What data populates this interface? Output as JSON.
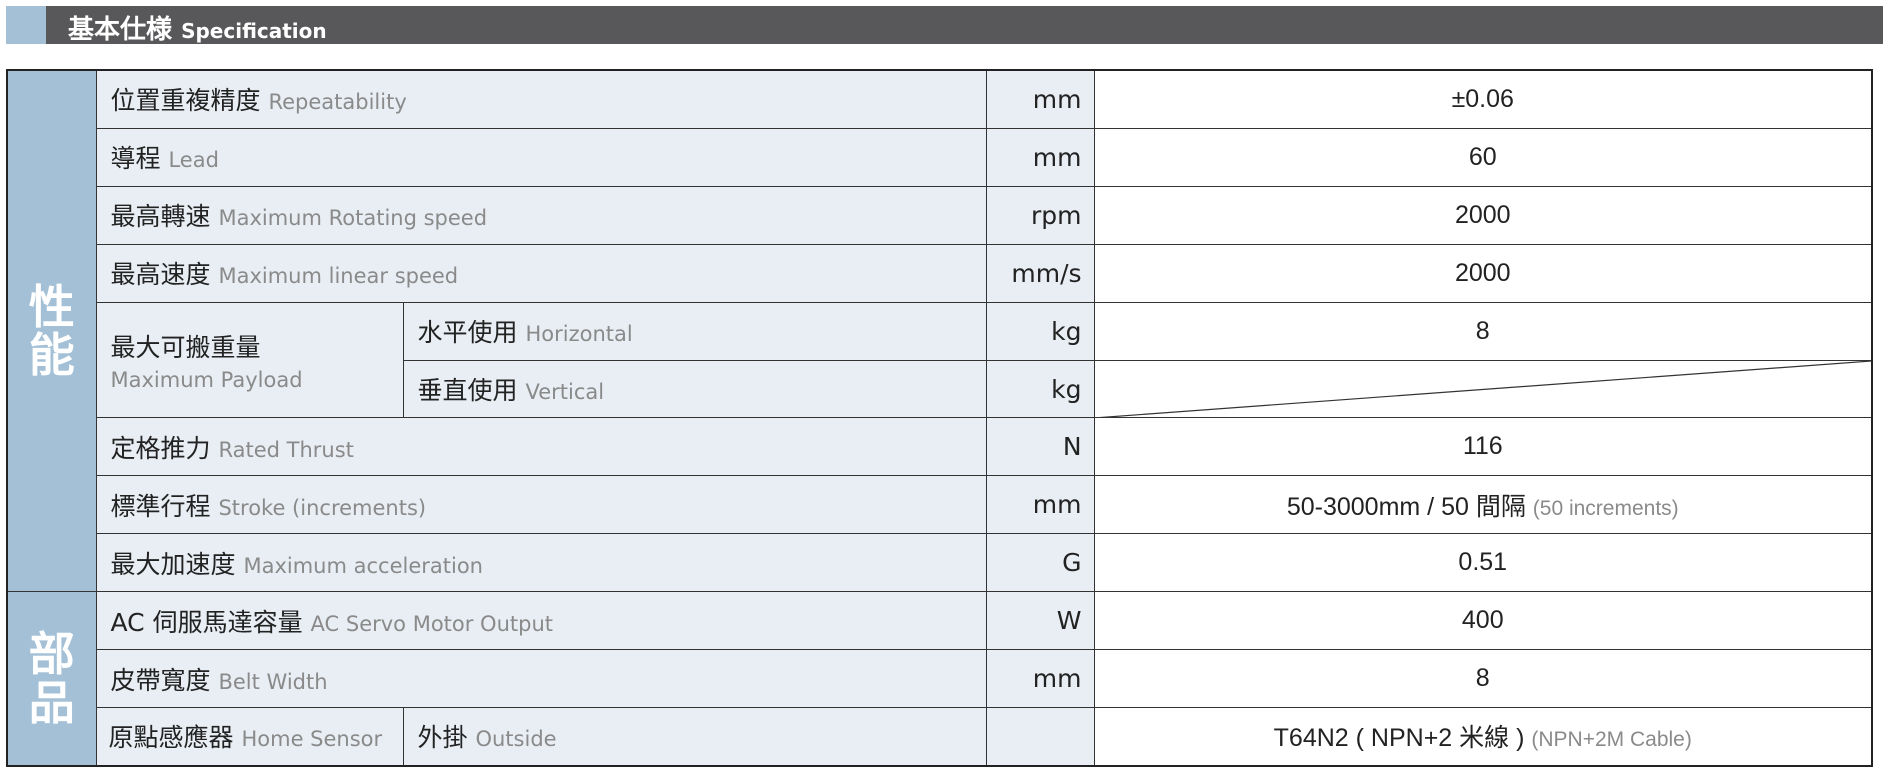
{
  "header": {
    "title_zh": "基本仕様",
    "title_en": "Specification"
  },
  "categories": {
    "performance": "性能",
    "parts": "部品"
  },
  "rows": [
    {
      "zh": "位置重複精度",
      "en": "Repeatability",
      "unit": "mm",
      "value": "±0.06"
    },
    {
      "zh": "導程",
      "en": "Lead",
      "unit": "mm",
      "value": "60"
    },
    {
      "zh": "最高轉速",
      "en": "Maximum Rotating speed",
      "unit": "rpm",
      "value": "2000"
    },
    {
      "zh": "最高速度",
      "en": "Maximum linear speed",
      "unit": "mm/s",
      "value": "2000"
    },
    {
      "zh": "定格推力",
      "en": "Rated Thrust",
      "unit": "N",
      "value": "116"
    },
    {
      "zh": "標準行程",
      "en": "Stroke (increments)",
      "unit": "mm",
      "value": "50-3000mm / 50 間隔",
      "value_en": "(50 increments)"
    },
    {
      "zh": "最大加速度",
      "en": "Maximum acceleration",
      "unit": "G",
      "value": "0.51"
    },
    {
      "zh": "AC 伺服馬達容量",
      "en": "AC Servo Motor Output",
      "unit": "W",
      "value": "400"
    },
    {
      "zh": "皮帶寬度",
      "en": "Belt Width",
      "unit": "mm",
      "value": "8"
    }
  ],
  "payload": {
    "zh": "最大可搬重量",
    "en": "Maximum Payload",
    "horizontal": {
      "zh": "水平使用",
      "en": "Horizontal",
      "unit": "kg",
      "value": "8"
    },
    "vertical": {
      "zh": "垂直使用",
      "en": "Vertical",
      "unit": "kg",
      "value": ""
    }
  },
  "sensor": {
    "zh": "原點感應器",
    "en": "Home Sensor",
    "sub_zh": "外掛",
    "sub_en": "Outside",
    "unit": "",
    "value": "T64N2 ( NPN+2 米線 )",
    "value_en": "(NPN+2M Cable)"
  }
}
